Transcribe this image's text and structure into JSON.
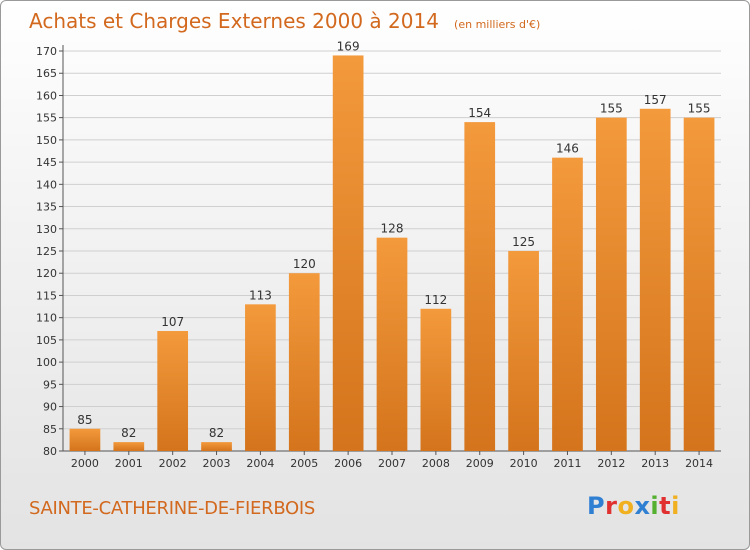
{
  "header": {
    "title": "Achats et Charges Externes 2000 à 2014",
    "unit": "(en milliers d'€)"
  },
  "footer": {
    "commune": "SAINTE-CATHERINE-DE-FIERBOIS",
    "logo_text": "Proxiti",
    "logo_colors": [
      "#2f7fd2",
      "#e03030",
      "#f0b020",
      "#2f7fd2",
      "#55b030",
      "#e03030",
      "#f0b020"
    ]
  },
  "colors": {
    "bar": "#f39a3c",
    "bar_dark": "#d4741c",
    "text": "#d2691e"
  },
  "chart_data": {
    "type": "bar",
    "categories": [
      "2000",
      "2001",
      "2002",
      "2003",
      "2004",
      "2005",
      "2006",
      "2007",
      "2008",
      "2009",
      "2010",
      "2011",
      "2012",
      "2013",
      "2014"
    ],
    "values": [
      85,
      82,
      107,
      82,
      113,
      120,
      169,
      128,
      112,
      154,
      125,
      146,
      155,
      157,
      155
    ],
    "ylim": [
      80,
      170
    ],
    "yticks": [
      80,
      85,
      90,
      95,
      100,
      105,
      110,
      115,
      120,
      125,
      130,
      135,
      140,
      145,
      150,
      155,
      160,
      165,
      170
    ],
    "grid": true,
    "data_labels": true
  }
}
